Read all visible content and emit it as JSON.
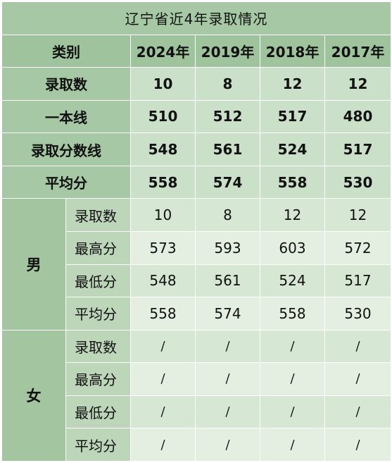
{
  "title": "辽宁省近4年录取情况",
  "header": {
    "category": "类别",
    "years": [
      "2024年",
      "2019年",
      "2018年",
      "2017年"
    ]
  },
  "overall_rows": [
    {
      "label": "录取数",
      "values": [
        "10",
        "8",
        "12",
        "12"
      ]
    },
    {
      "label": "一本线",
      "values": [
        "510",
        "512",
        "517",
        "480"
      ]
    },
    {
      "label": "录取分数线",
      "values": [
        "548",
        "561",
        "524",
        "517"
      ]
    },
    {
      "label": "平均分",
      "values": [
        "558",
        "574",
        "558",
        "530"
      ]
    }
  ],
  "male": {
    "group_label": "男",
    "rows": [
      {
        "label": "录取数",
        "values": [
          "10",
          "8",
          "12",
          "12"
        ]
      },
      {
        "label": "最高分",
        "values": [
          "573",
          "593",
          "603",
          "572"
        ]
      },
      {
        "label": "最低分",
        "values": [
          "548",
          "561",
          "524",
          "517"
        ]
      },
      {
        "label": "平均分",
        "values": [
          "558",
          "574",
          "558",
          "530"
        ]
      }
    ]
  },
  "female": {
    "group_label": "女",
    "rows": [
      {
        "label": "录取数",
        "values": [
          "/",
          "/",
          "/",
          "/"
        ]
      },
      {
        "label": "最高分",
        "values": [
          "/",
          "/",
          "/",
          "/"
        ]
      },
      {
        "label": "最低分",
        "values": [
          "/",
          "/",
          "/",
          "/"
        ]
      },
      {
        "label": "平均分",
        "values": [
          "/",
          "/",
          "/",
          "/"
        ]
      }
    ]
  }
}
